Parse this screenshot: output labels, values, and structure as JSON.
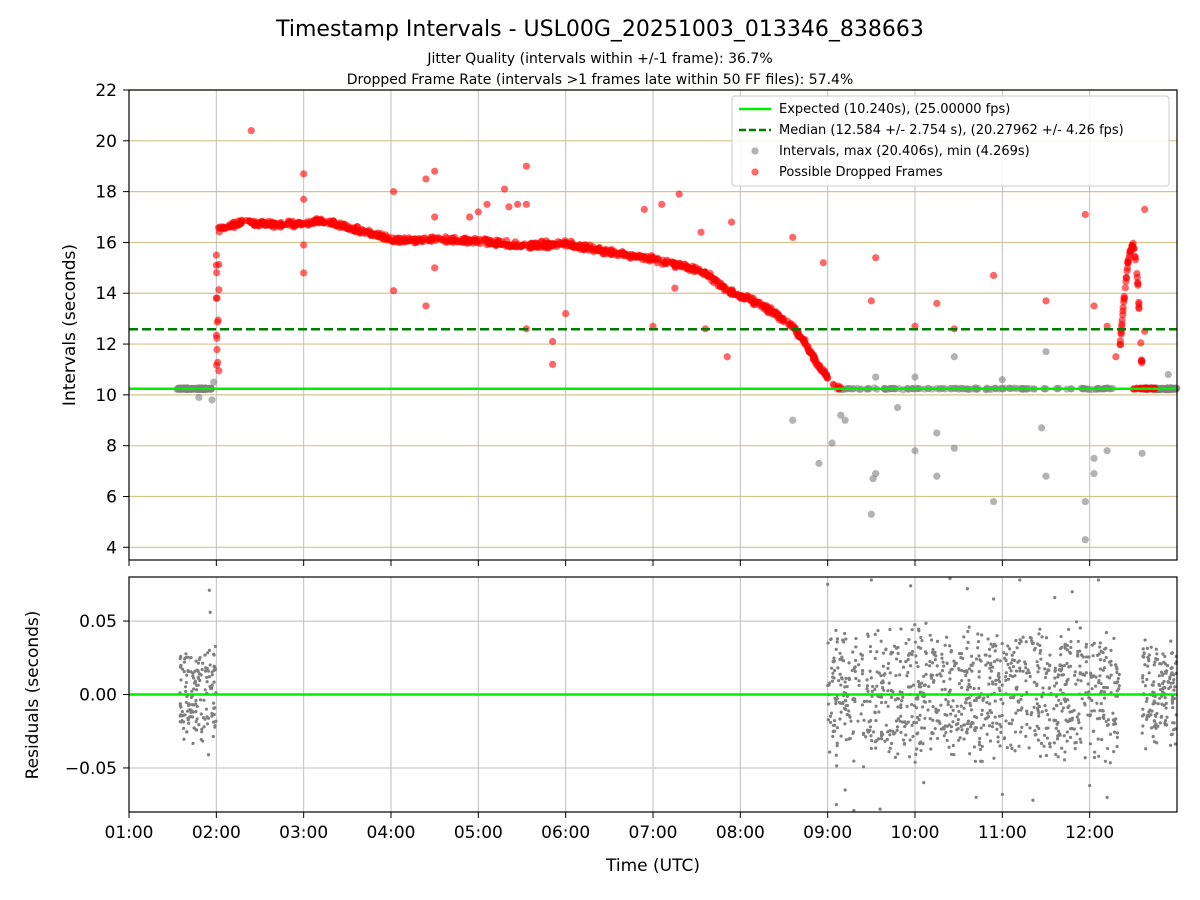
{
  "title": "Timestamp Intervals - USL00G_20251003_013346_838663",
  "subtitle_1": "Jitter Quality (intervals within +/-1 frame): 36.7%",
  "subtitle_2": "Dropped Frame Rate (intervals >1 frames late within 50 FF files): 57.4%",
  "colors": {
    "expected": "#00ee00",
    "median": "#007a00",
    "intervals": "#808080",
    "dropped": "#ff0000",
    "hgrid_top": "#d4c48a",
    "grid": "#bfbfbf"
  },
  "chart_data": [
    {
      "type": "scatter",
      "name": "intervals-panel",
      "xlabel": "",
      "ylabel": "Intervals (seconds)",
      "xlim": [
        1.0,
        13.0
      ],
      "ylim": [
        3.5,
        22.0
      ],
      "yticks": [
        "4",
        "6",
        "8",
        "10",
        "12",
        "14",
        "16",
        "18",
        "20",
        "22"
      ],
      "ytick_values": [
        4,
        6,
        8,
        10,
        12,
        14,
        16,
        18,
        20,
        22
      ],
      "grid": true,
      "legend_position": "top-right",
      "legend": [
        "Expected (10.240s), (25.00000 fps)",
        "Median (12.584 +/- 2.754 s), (20.27962 +/- 4.26 fps)",
        "Intervals, max (20.406s), min (4.269s)",
        "Possible Dropped Frames"
      ],
      "expected_value": 10.24,
      "median_value": 12.584,
      "dropped_segments": [
        {
          "x": [
            2.02,
            2.3,
            2.6,
            3.0,
            3.25,
            3.5,
            4.0,
            4.5,
            5.0,
            5.5,
            6.0,
            6.5,
            7.0,
            7.3,
            7.6,
            7.85,
            8.1,
            8.4,
            8.6,
            8.75,
            8.9,
            9.05,
            9.15
          ],
          "y": [
            16.5,
            16.8,
            16.7,
            16.75,
            16.85,
            16.6,
            16.1,
            16.1,
            16.05,
            15.85,
            15.95,
            15.6,
            15.35,
            15.1,
            14.8,
            14.1,
            13.8,
            13.2,
            12.7,
            12.0,
            11.1,
            10.5,
            10.25
          ]
        },
        {
          "x": [
            12.35,
            12.4,
            12.45,
            12.5,
            12.55,
            12.6
          ],
          "y": [
            12.0,
            14.0,
            15.5,
            16.0,
            14.5,
            11.0
          ]
        }
      ],
      "dropped_outliers": {
        "x": [
          2.4,
          3.0,
          3.0,
          4.03,
          4.4,
          4.5,
          4.5,
          4.9,
          5.3,
          5.35,
          5.45,
          5.55,
          5.55,
          5.0,
          5.1,
          6.9,
          7.1,
          7.3,
          7.55,
          7.9,
          8.6,
          8.95,
          9.55,
          9.5,
          10.0,
          10.25,
          10.45,
          10.9,
          11.5,
          11.95,
          12.05,
          12.2,
          12.63,
          12.63,
          2.0,
          2.0,
          3.0,
          3.0,
          4.03,
          4.4,
          4.5,
          5.55,
          5.85,
          5.85,
          6.0,
          7.0,
          7.25,
          7.6,
          7.85,
          2.0,
          12.3
        ],
        "y": [
          20.4,
          18.7,
          17.7,
          18.0,
          18.5,
          18.8,
          17.0,
          17.0,
          18.1,
          17.4,
          17.5,
          17.5,
          19.0,
          17.2,
          17.5,
          17.3,
          17.5,
          17.9,
          16.4,
          16.8,
          16.2,
          15.2,
          15.4,
          13.7,
          12.7,
          13.6,
          12.6,
          14.7,
          13.7,
          17.1,
          13.5,
          12.7,
          17.3,
          12.5,
          15.1,
          13.8,
          14.8,
          15.9,
          14.1,
          13.5,
          15.0,
          12.6,
          12.1,
          11.2,
          13.2,
          12.7,
          14.2,
          12.6,
          11.5,
          15.5,
          11.5
        ]
      },
      "interval_segments": [
        {
          "x": [
            1.55,
            1.75,
            1.95
          ],
          "y": [
            10.24,
            10.24,
            10.24
          ]
        },
        {
          "x": [
            9.1,
            10.0,
            11.0,
            12.3
          ],
          "y": [
            10.24,
            10.24,
            10.24,
            10.24
          ]
        },
        {
          "x": [
            12.6,
            13.0
          ],
          "y": [
            10.24,
            10.24
          ]
        }
      ],
      "interval_outliers": {
        "x": [
          1.8,
          1.95,
          1.97,
          8.6,
          8.9,
          9.05,
          9.15,
          9.2,
          9.5,
          9.52,
          9.55,
          9.55,
          9.8,
          10.0,
          10.0,
          10.25,
          10.25,
          10.45,
          10.45,
          10.9,
          11.0,
          11.45,
          11.5,
          11.5,
          11.95,
          11.95,
          12.05,
          12.05,
          12.2,
          12.6,
          12.9
        ],
        "y": [
          9.9,
          9.8,
          10.5,
          9.0,
          7.3,
          8.1,
          9.2,
          9.0,
          5.3,
          6.7,
          6.9,
          10.7,
          9.5,
          7.8,
          10.7,
          8.5,
          6.8,
          7.9,
          11.5,
          5.8,
          10.6,
          8.7,
          6.8,
          11.7,
          4.3,
          5.8,
          7.5,
          6.9,
          7.8,
          7.7,
          10.8
        ]
      }
    },
    {
      "type": "scatter",
      "name": "residuals-panel",
      "xlabel": "Time (UTC)",
      "ylabel": "Residuals (seconds)",
      "xlim": [
        1.0,
        13.0
      ],
      "ylim": [
        -0.08,
        0.08
      ],
      "xticks": [
        "01:00",
        "02:00",
        "03:00",
        "04:00",
        "05:00",
        "06:00",
        "07:00",
        "08:00",
        "09:00",
        "10:00",
        "11:00",
        "12:00"
      ],
      "xtick_values": [
        1,
        2,
        3,
        4,
        5,
        6,
        7,
        8,
        9,
        10,
        11,
        12
      ],
      "yticks": [
        "0.05",
        "0.00",
        "−0.05"
      ],
      "ytick_values": [
        0.05,
        0.0,
        -0.05
      ],
      "grid": true,
      "zero_line": 0.0,
      "residual_clusters": [
        {
          "x_range": [
            1.58,
            2.0
          ],
          "y_spread": 0.035,
          "count": 160
        },
        {
          "x_range": [
            9.0,
            12.35
          ],
          "y_spread": 0.05,
          "count": 1000
        },
        {
          "x_range": [
            12.6,
            13.0
          ],
          "y_spread": 0.04,
          "count": 150
        }
      ],
      "residual_outliers": {
        "x": [
          1.92,
          1.93,
          1.91,
          9.0,
          9.1,
          9.3,
          9.5,
          9.95,
          10.4,
          10.7,
          10.9,
          11.2,
          11.35,
          11.8,
          12.1,
          12.2,
          9.2,
          9.6,
          10.1,
          10.6,
          11.0,
          11.6,
          12.0
        ],
        "y": [
          0.071,
          0.056,
          -0.041,
          0.075,
          -0.075,
          -0.079,
          0.078,
          0.074,
          0.079,
          -0.07,
          0.065,
          0.078,
          -0.072,
          0.07,
          0.078,
          -0.07,
          -0.065,
          -0.078,
          -0.06,
          0.072,
          -0.068,
          0.066,
          -0.062
        ]
      }
    }
  ]
}
